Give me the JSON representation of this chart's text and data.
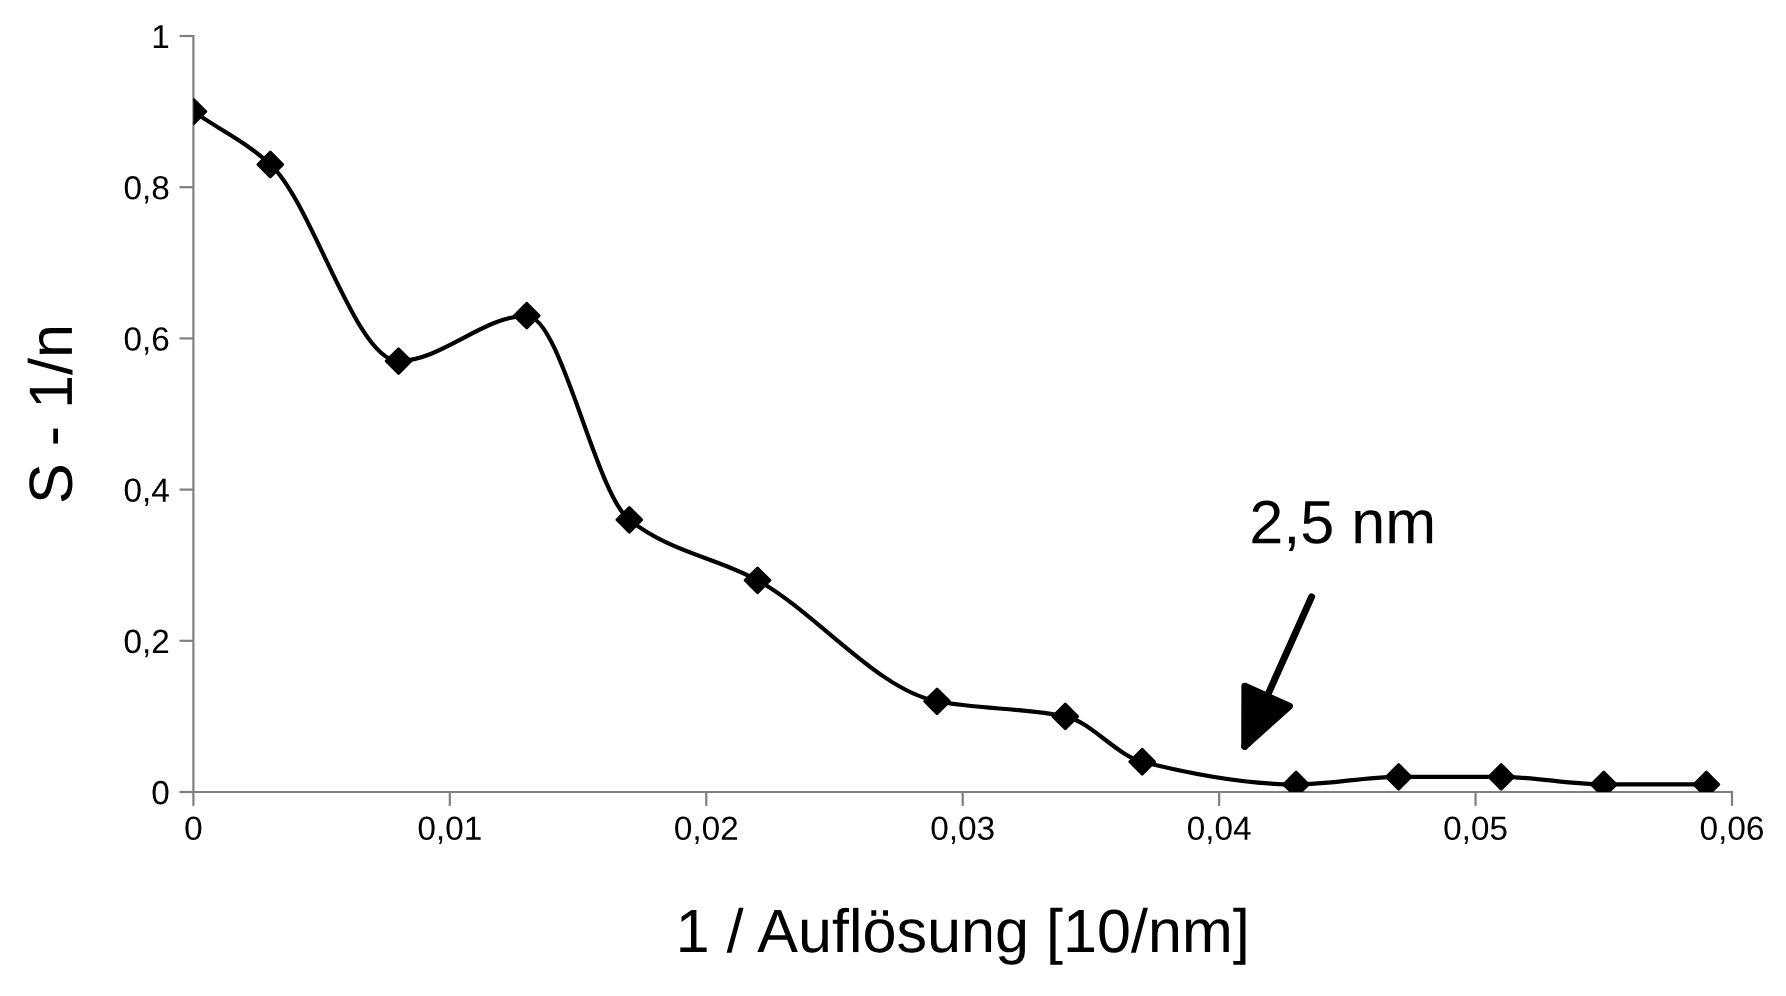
{
  "chart_data": {
    "type": "line",
    "xlabel": "1 / Auflösung [10/nm]",
    "ylabel": "S - 1/n",
    "x": [
      0,
      0.003,
      0.008,
      0.013,
      0.017,
      0.022,
      0.029,
      0.034,
      0.037,
      0.043,
      0.047,
      0.051,
      0.055,
      0.059
    ],
    "series": [
      {
        "color": "#000000",
        "values": [
          0.9,
          0.83,
          0.57,
          0.63,
          0.36,
          0.28,
          0.12,
          0.1,
          0.04,
          0.01,
          0.02,
          0.02,
          0.01,
          0.01
        ]
      }
    ],
    "annotations": [
      "2,5 nm"
    ],
    "xlim": [
      0,
      0.06
    ],
    "ylim": [
      0,
      1
    ],
    "xticks": [
      0,
      {
        "value": 0.01,
        "label": "0,01"
      },
      {
        "value": 0.02,
        "label": "0,02"
      },
      {
        "value": 0.03,
        "label": "0,03"
      },
      {
        "value": 0.04,
        "label": "0,04"
      },
      {
        "value": 0.05,
        "label": "0,05"
      },
      {
        "value": 0.06,
        "label": "0,06"
      }
    ],
    "yticks": [
      0,
      {
        "value": 0.2,
        "label": "0,2"
      },
      {
        "value": 0.4,
        "label": "0,4"
      },
      {
        "value": 0.6,
        "label": "0,6"
      },
      {
        "value": 0.8,
        "label": "0,8"
      },
      1
    ],
    "marker": "diamond",
    "line_style": "solid",
    "grid": false
  }
}
